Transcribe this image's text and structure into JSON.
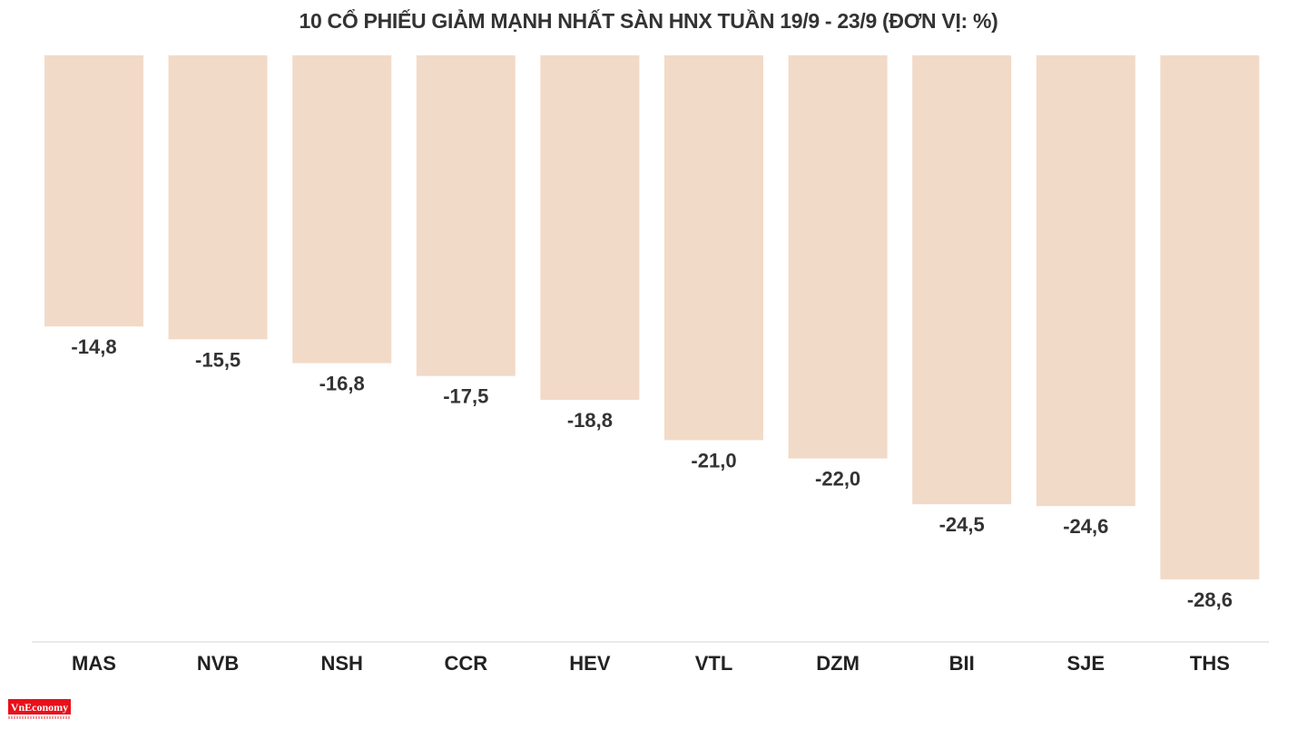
{
  "chart_data": {
    "type": "bar",
    "title": "10 CỔ PHIẾU GIẢM MẠNH NHẤT SÀN HNX TUẦN 19/9 - 23/9 (ĐƠN VỊ: %)",
    "categories": [
      "MAS",
      "NVB",
      "NSH",
      "CCR",
      "HEV",
      "VTL",
      "DZM",
      "BII",
      "SJE",
      "THS"
    ],
    "values": [
      -14.8,
      -15.5,
      -16.8,
      -17.5,
      -18.8,
      -21.0,
      -22.0,
      -24.5,
      -24.6,
      -28.6
    ],
    "data_labels": [
      "-14,8",
      "-15,5",
      "-16,8",
      "-17,5",
      "-18,8",
      "-21,0",
      "-22,0",
      "-24,5",
      "-24,6",
      "-28,6"
    ],
    "xlabel": "",
    "ylabel": "",
    "ylim": [
      -32,
      0
    ],
    "grid": false,
    "bar_color": "#f2dac8"
  },
  "logo": {
    "text": "VnEconomy"
  }
}
